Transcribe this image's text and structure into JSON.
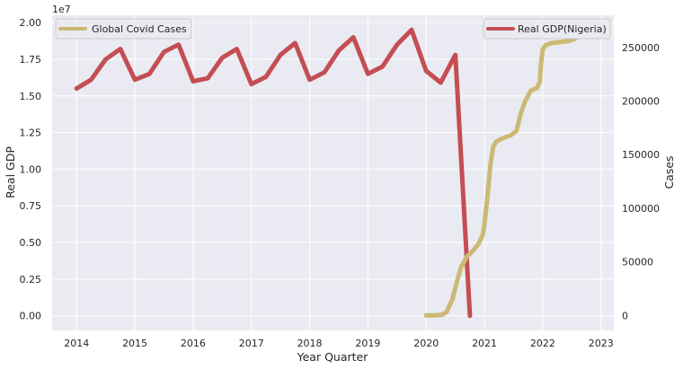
{
  "chart_data": {
    "type": "line",
    "xlabel": "Year Quarter",
    "xlim": [
      2013.58,
      2023.22
    ],
    "x_ticks": [
      2014,
      2015,
      2016,
      2017,
      2018,
      2019,
      2020,
      2021,
      2022,
      2023
    ],
    "x_tick_labels": [
      "2014",
      "2015",
      "2016",
      "2017",
      "2018",
      "2019",
      "2020",
      "2021",
      "2022",
      "2023"
    ],
    "left_axis": {
      "label": "Real GDP",
      "offset_text": "1e7",
      "ylim": [
        -0.1,
        2.05
      ],
      "ticks": [
        0.0,
        0.25,
        0.5,
        0.75,
        1.0,
        1.25,
        1.5,
        1.75,
        2.0
      ],
      "tick_labels": [
        "0.00",
        "0.25",
        "0.50",
        "0.75",
        "1.00",
        "1.25",
        "1.50",
        "1.75",
        "2.00"
      ]
    },
    "right_axis": {
      "label": "Cases",
      "ylim": [
        -14000,
        280000
      ],
      "ticks": [
        0,
        50000,
        100000,
        150000,
        200000,
        250000
      ],
      "tick_labels": [
        "0",
        "50000",
        "100000",
        "150000",
        "200000",
        "250000"
      ]
    },
    "series": [
      {
        "name": "Real GDP(Nigeria)",
        "axis": "left",
        "color": "#c44e52",
        "legend_position": "upper right",
        "x": [
          2014.0,
          2014.25,
          2014.5,
          2014.75,
          2015.0,
          2015.25,
          2015.5,
          2015.75,
          2016.0,
          2016.25,
          2016.5,
          2016.75,
          2017.0,
          2017.25,
          2017.5,
          2017.75,
          2018.0,
          2018.25,
          2018.5,
          2018.75,
          2019.0,
          2019.25,
          2019.5,
          2019.75,
          2020.0,
          2020.25,
          2020.5,
          2020.75
        ],
        "y": [
          1.55,
          1.61,
          1.75,
          1.82,
          1.61,
          1.65,
          1.8,
          1.85,
          1.6,
          1.62,
          1.76,
          1.82,
          1.58,
          1.63,
          1.78,
          1.86,
          1.61,
          1.66,
          1.81,
          1.9,
          1.65,
          1.7,
          1.85,
          1.95,
          1.67,
          1.59,
          1.78,
          0.0
        ]
      },
      {
        "name": "Global Covid Cases",
        "axis": "right",
        "color": "#ccb974",
        "legend_position": "upper left",
        "x": [
          2020.0,
          2020.15,
          2020.27,
          2020.35,
          2020.45,
          2020.52,
          2020.6,
          2020.7,
          2020.8,
          2020.9,
          2020.97,
          2021.0,
          2021.05,
          2021.1,
          2021.15,
          2021.2,
          2021.3,
          2021.45,
          2021.55,
          2021.62,
          2021.7,
          2021.8,
          2021.9,
          2021.95,
          2021.97,
          2022.0,
          2022.05,
          2022.15,
          2022.3,
          2022.45,
          2022.55,
          2022.7,
          2022.85,
          2022.9
        ],
        "y": [
          0,
          0,
          500,
          3000,
          15000,
          30000,
          45000,
          55000,
          60000,
          67000,
          75000,
          85000,
          110000,
          140000,
          157000,
          162000,
          165000,
          168000,
          172000,
          188000,
          200000,
          210000,
          212000,
          218000,
          235000,
          248000,
          252000,
          254000,
          255000,
          256000,
          258000,
          263000,
          265000,
          266000
        ]
      }
    ]
  }
}
